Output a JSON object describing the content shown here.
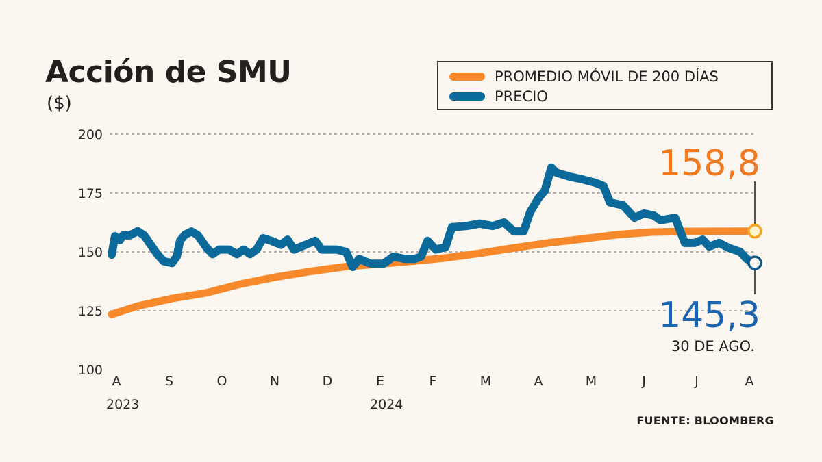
{
  "chart_data": {
    "type": "line",
    "title": "Acción de SMU",
    "ylabel": "($)",
    "ylim": [
      100,
      200
    ],
    "yticks": [
      "200",
      "175",
      "150",
      "125",
      "100"
    ],
    "ytick_values": [
      200,
      175,
      150,
      125,
      100
    ],
    "xlim": [
      "2023-08-01",
      "2024-08-30"
    ],
    "xticks": [
      "A",
      "S",
      "O",
      "N",
      "D",
      "E",
      "F",
      "M",
      "A",
      "M",
      "J",
      "J",
      "A"
    ],
    "xtick_years": {
      "0": "2023",
      "5": "2024"
    },
    "grid": "horizontal dashed",
    "legend_placement": "top-right",
    "series": [
      {
        "name": "PROMEDIO MÓVIL DE 200 DÍAS",
        "color": "#f7892a",
        "x": [
          "2023-08-01",
          "2023-08-17",
          "2023-09-07",
          "2023-09-28",
          "2023-10-19",
          "2023-11-09",
          "2023-11-30",
          "2023-12-21",
          "2024-01-11",
          "2024-02-01",
          "2024-02-22",
          "2024-03-14",
          "2024-04-04",
          "2024-04-25",
          "2024-05-16",
          "2024-06-06",
          "2024-06-27",
          "2024-07-18",
          "2024-08-30"
        ],
        "values": [
          123.5,
          127,
          130.2,
          132.6,
          136.3,
          139.2,
          141.6,
          143.6,
          144.8,
          146,
          147.4,
          149.4,
          151.7,
          153.8,
          155.5,
          157.3,
          158.4,
          158.7,
          158.8
        ]
      },
      {
        "name": "PRECIO",
        "color": "#0b6a99",
        "x": [
          "2023-08-01",
          "2023-08-03",
          "2023-08-06",
          "2023-08-08",
          "2023-08-12",
          "2023-08-17",
          "2023-08-21",
          "2023-08-25",
          "2023-08-29",
          "2023-09-02",
          "2023-09-07",
          "2023-09-10",
          "2023-09-12",
          "2023-09-15",
          "2023-09-19",
          "2023-09-23",
          "2023-09-28",
          "2023-10-02",
          "2023-10-06",
          "2023-10-12",
          "2023-10-17",
          "2023-10-21",
          "2023-10-25",
          "2023-10-29",
          "2023-11-02",
          "2023-11-07",
          "2023-11-13",
          "2023-11-17",
          "2023-11-21",
          "2023-11-28",
          "2023-12-04",
          "2023-12-08",
          "2023-12-17",
          "2023-12-23",
          "2023-12-27",
          "2023-12-31",
          "2024-01-07",
          "2024-01-15",
          "2024-01-21",
          "2024-01-28",
          "2024-02-03",
          "2024-02-07",
          "2024-02-11",
          "2024-02-16",
          "2024-02-22",
          "2024-02-26",
          "2024-03-06",
          "2024-03-14",
          "2024-03-22",
          "2024-03-29",
          "2024-04-04",
          "2024-04-10",
          "2024-04-14",
          "2024-04-19",
          "2024-04-23",
          "2024-04-27",
          "2024-04-30",
          "2024-05-08",
          "2024-05-16",
          "2024-05-24",
          "2024-05-29",
          "2024-06-02",
          "2024-06-10",
          "2024-06-17",
          "2024-06-23",
          "2024-06-29",
          "2024-07-03",
          "2024-07-12",
          "2024-07-18",
          "2024-07-24",
          "2024-07-29",
          "2024-08-02",
          "2024-08-08",
          "2024-08-14",
          "2024-08-21",
          "2024-08-25",
          "2024-08-30"
        ],
        "values": [
          148.8,
          156.7,
          155,
          157,
          157,
          158.8,
          157,
          153,
          149,
          146,
          145.3,
          148,
          154.7,
          157.3,
          158.7,
          157,
          152,
          149,
          151,
          151,
          149,
          151,
          149,
          151,
          155.8,
          154.7,
          153,
          155.2,
          151,
          153,
          154.7,
          151,
          151,
          150,
          143.6,
          147,
          145,
          145,
          148,
          147,
          147,
          148,
          154.7,
          151,
          152,
          160.5,
          161,
          162,
          161,
          162.5,
          158.7,
          158.7,
          166.9,
          172.7,
          176,
          185.8,
          183.7,
          182,
          180.8,
          179.4,
          178,
          171,
          169.8,
          164.5,
          166.3,
          165.4,
          163.4,
          164.5,
          153.8,
          153.8,
          155.2,
          152.3,
          153.8,
          151.7,
          150,
          147,
          145.3
        ]
      }
    ],
    "annotations": {
      "ma_last": "158,8",
      "price_last": "145,3",
      "price_last_date": "30 DE AGO.",
      "ma_label_color": "#f07a20",
      "price_label_color": "#1a64b0"
    },
    "source": "FUENTE: BLOOMBERG"
  }
}
